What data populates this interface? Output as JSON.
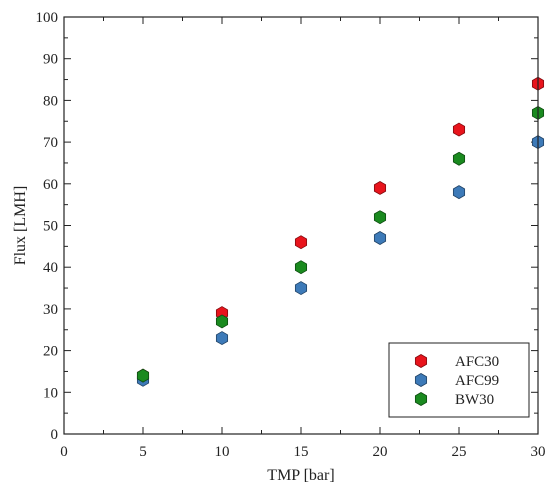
{
  "chart_data": {
    "type": "scatter",
    "title": "",
    "xlabel": "TMP [bar]",
    "ylabel": "Flux [LMH]",
    "xlim": [
      0,
      30
    ],
    "ylim": [
      0,
      100
    ],
    "xticks": [
      0,
      5,
      10,
      15,
      20,
      25,
      30
    ],
    "yticks": [
      0,
      10,
      20,
      30,
      40,
      50,
      60,
      70,
      80,
      90,
      100
    ],
    "x_minor_step": 2.5,
    "y_minor_step": 5,
    "grid": false,
    "legend_position": "bottom-right",
    "marker": "hexagon",
    "series": [
      {
        "name": "AFC30",
        "color": "#e8141c",
        "x": [
          5,
          10,
          15,
          20,
          25,
          30
        ],
        "y": [
          14,
          29,
          46,
          59,
          73,
          84
        ]
      },
      {
        "name": "AFC99",
        "color": "#3d7ab8",
        "x": [
          5,
          10,
          15,
          20,
          25,
          30
        ],
        "y": [
          13,
          23,
          35,
          47,
          58,
          70
        ]
      },
      {
        "name": "BW30",
        "color": "#1a8a1f",
        "x": [
          5,
          10,
          15,
          20,
          25,
          30
        ],
        "y": [
          14,
          27,
          40,
          52,
          66,
          77
        ]
      }
    ]
  }
}
